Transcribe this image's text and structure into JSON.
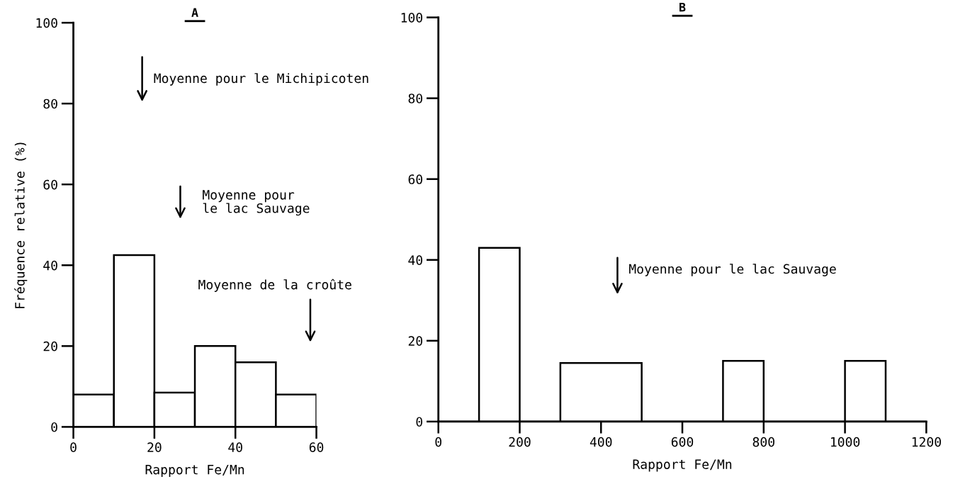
{
  "chart_data": [
    {
      "type": "histogram",
      "title": "A",
      "xlabel": "Rapport Fe/Mn",
      "ylabel": "Fréquence relative (%)",
      "bins": [
        0,
        10,
        20,
        30,
        40,
        50,
        60
      ],
      "values": [
        8,
        42.5,
        8.5,
        20,
        16,
        8
      ],
      "color": "#000000",
      "xlim": [
        0,
        60
      ],
      "xticks": [
        0,
        20,
        40,
        60
      ],
      "ylim": [
        0,
        100
      ],
      "yticks": [
        0,
        20,
        40,
        60,
        80,
        100
      ],
      "grid": false,
      "annotations": [
        "Moyenne pour le Michipicoten",
        "Moyenne pour\nle lac Sauvage",
        "Moyenne de la croûte"
      ]
    },
    {
      "type": "histogram",
      "title": "B",
      "xlabel": "Rapport Fe/Mn",
      "bins": [
        0,
        100,
        200,
        300,
        500,
        700,
        800,
        1000,
        1100,
        1200
      ],
      "values": [
        0,
        43,
        0,
        14.5,
        0,
        15,
        0,
        15,
        0
      ],
      "color": "#000000",
      "xlim": [
        0,
        1200
      ],
      "xticks": [
        0,
        200,
        400,
        600,
        800,
        1000,
        1200
      ],
      "ylim": [
        0,
        100
      ],
      "yticks": [
        0,
        20,
        40,
        60,
        80,
        100
      ],
      "grid": false,
      "annotations": [
        "Moyenne pour le lac Sauvage"
      ]
    }
  ]
}
